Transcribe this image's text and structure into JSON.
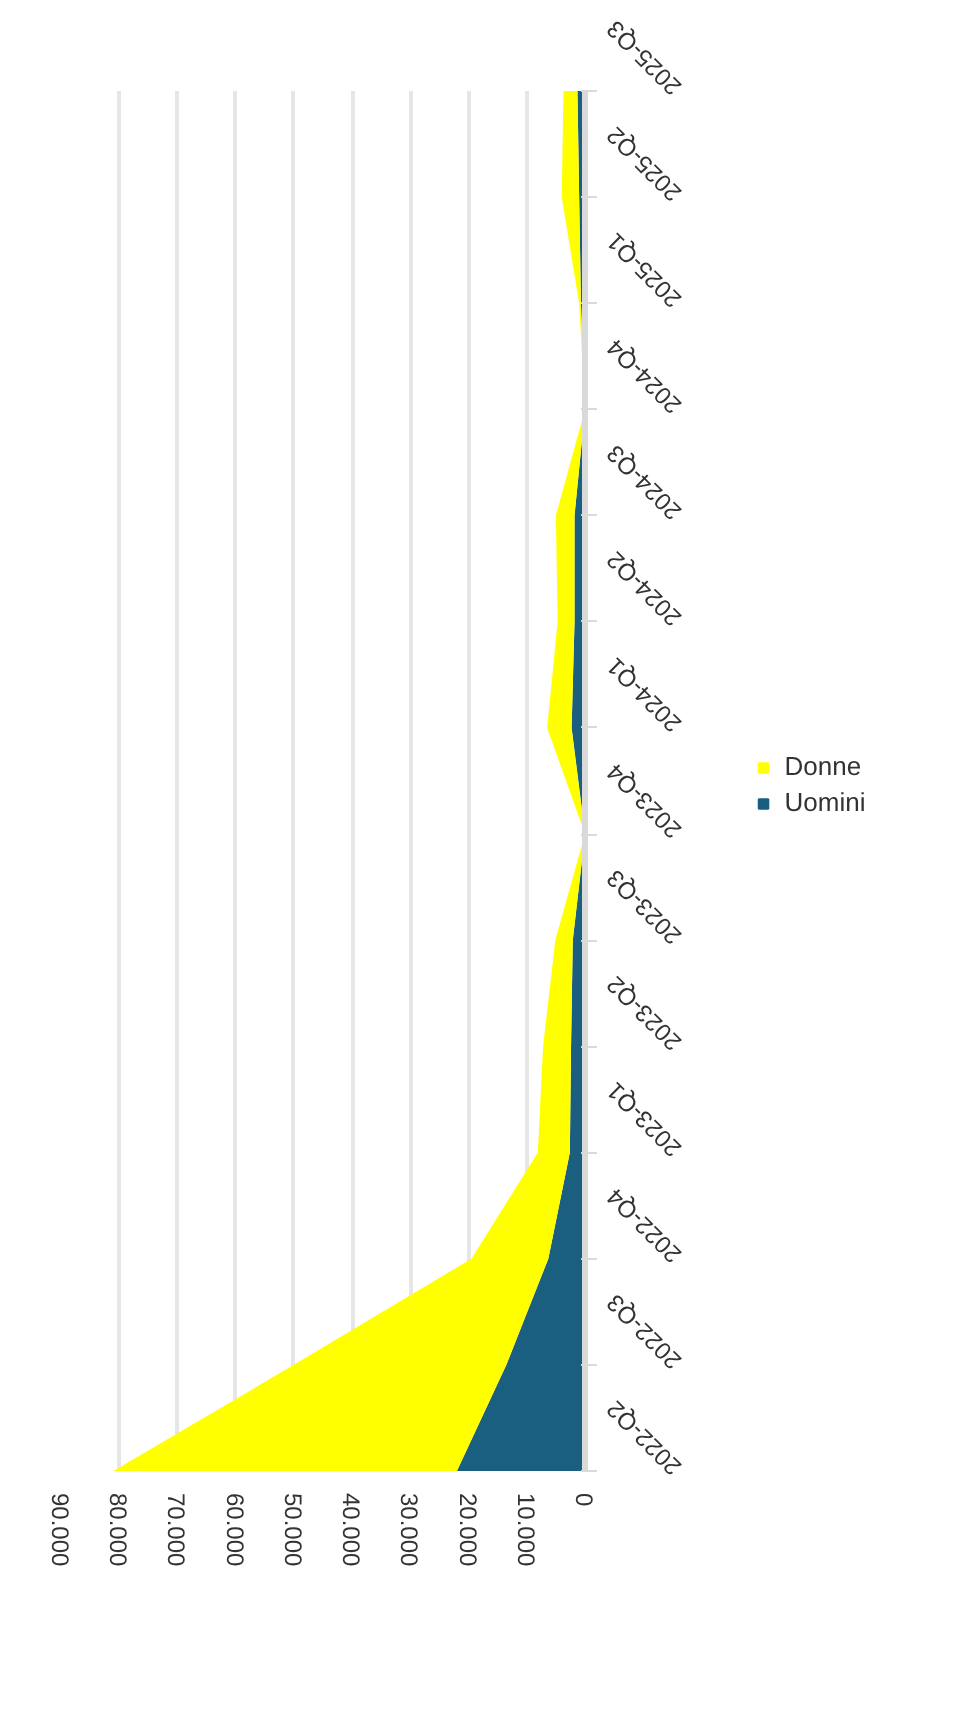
{
  "chart_data": {
    "type": "area",
    "stacked": true,
    "orientation": "horizontal",
    "categories": [
      "2025-Q3",
      "2025-Q2",
      "2025-Q1",
      "2024-Q4",
      "2024-Q3",
      "2024-Q2",
      "2024-Q1",
      "2023-Q4",
      "2023-Q3",
      "2023-Q2",
      "2023-Q1",
      "2022-Q4",
      "2022-Q3",
      "2022-Q2"
    ],
    "series": [
      {
        "name": "Uomini",
        "color": "#1a5e80",
        "values": [
          1300,
          1000,
          700,
          0,
          1800,
          1800,
          2300,
          0,
          2100,
          2400,
          2600,
          6300,
          13500,
          22000
        ]
      },
      {
        "name": "Donne",
        "color": "#ffff00",
        "values": [
          2400,
          3000,
          300,
          0,
          3200,
          2900,
          4200,
          0,
          3000,
          4800,
          5500,
          13200,
          36500,
          59000
        ]
      }
    ],
    "xlim": [
      90000,
      0
    ],
    "xticks": [
      0,
      {
        "value": 10000,
        "label": "10.000"
      },
      {
        "value": 20000,
        "label": "20.000"
      },
      {
        "value": 30000,
        "label": "30.000"
      },
      {
        "value": 40000,
        "label": "40.000"
      },
      {
        "value": 50000,
        "label": "50.000"
      },
      {
        "value": 60000,
        "label": "60.000"
      },
      {
        "value": 70000,
        "label": "70.000"
      },
      {
        "value": 80000,
        "label": "80.000"
      },
      {
        "value": 90000,
        "label": "90.000"
      }
    ],
    "grid": "x",
    "legend": "right"
  }
}
